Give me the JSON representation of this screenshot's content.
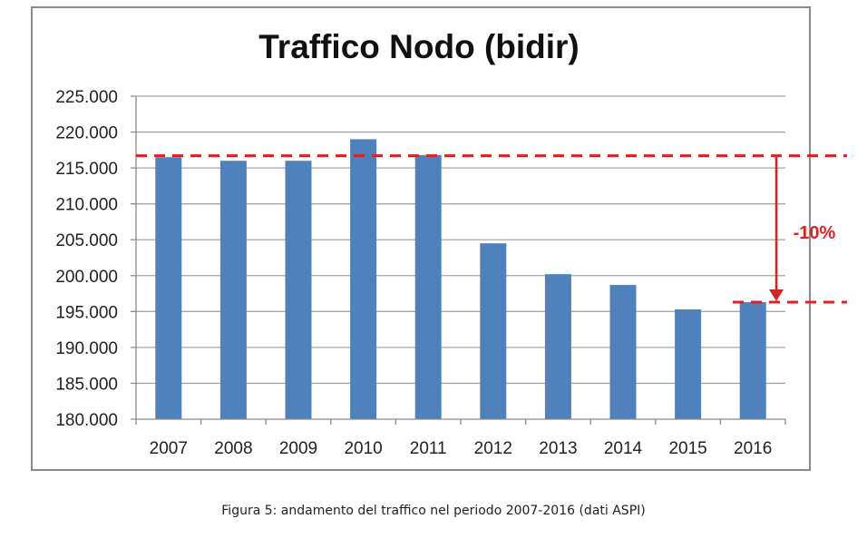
{
  "chart_data": {
    "type": "bar",
    "title": "Traffico Nodo (bidir)",
    "categories": [
      "2007",
      "2008",
      "2009",
      "2010",
      "2011",
      "2012",
      "2013",
      "2014",
      "2015",
      "2016"
    ],
    "values": [
      216500,
      216000,
      216000,
      219000,
      216800,
      204500,
      200200,
      198700,
      195300,
      196300
    ],
    "yticks": [
      "180.000",
      "185.000",
      "190.000",
      "195.000",
      "200.000",
      "205.000",
      "210.000",
      "215.000",
      "220.000",
      "225.000"
    ],
    "ylim": [
      180000,
      225000
    ],
    "ystep": 5000,
    "xlabel": "",
    "ylabel": "",
    "grid": true,
    "bar_color": "#4f81bd",
    "reference_lines": {
      "upper": 216700,
      "lower": 196300,
      "color": "#e02020"
    },
    "annotation": "-10%"
  },
  "caption": "Figura 5: andamento del traffico nel periodo 2007-2016 (dati ASPI)"
}
